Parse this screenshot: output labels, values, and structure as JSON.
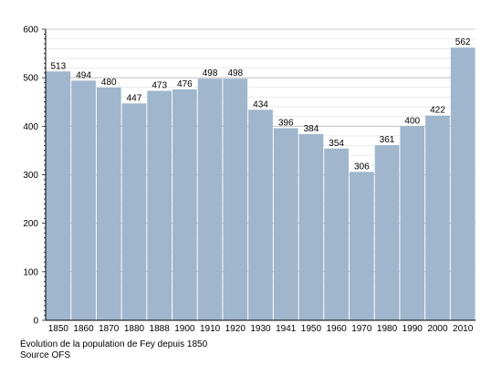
{
  "chart_data": {
    "type": "bar",
    "categories": [
      "1850",
      "1860",
      "1870",
      "1880",
      "1888",
      "1900",
      "1910",
      "1920",
      "1930",
      "1941",
      "1950",
      "1960",
      "1970",
      "1980",
      "1990",
      "2000",
      "2010"
    ],
    "values": [
      513,
      494,
      480,
      447,
      473,
      476,
      498,
      498,
      434,
      396,
      384,
      354,
      306,
      361,
      400,
      422,
      562
    ],
    "yticks": [
      0,
      100,
      200,
      300,
      400,
      500,
      600
    ],
    "ylim": [
      0,
      600
    ],
    "grid": true,
    "bar_color": "#9fb6cd",
    "title": "",
    "xlabel": "",
    "ylabel": ""
  },
  "caption": {
    "line1": "Évolution de la population de Fey depuis 1850",
    "line2": "Source OFS"
  }
}
